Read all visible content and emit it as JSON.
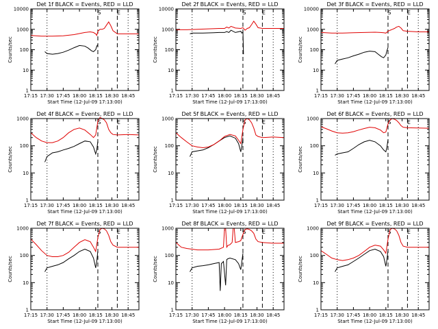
{
  "chart_data": {
    "type": "line",
    "colors": {
      "events": "#000000",
      "lld": "#e00000",
      "axes": "#000000",
      "background": "#ffffff"
    },
    "x_tick_labels": [
      "17:15",
      "17:30",
      "17:45",
      "18:00",
      "18:15",
      "18:30",
      "18:45"
    ],
    "x_ticks_minutes": [
      0,
      15,
      30,
      45,
      60,
      75,
      90
    ],
    "xlim_minutes": [
      0,
      100
    ],
    "xlabel": "Start Time (12-Jul-09 17:13:00)",
    "ylabel": "Counts/sec",
    "yscale": "log",
    "dotted_lines_minutes": [
      15,
      90
    ],
    "dashed_lines_minutes": [
      62,
      80
    ],
    "markers": [
      {
        "text": "S",
        "minute": 62
      },
      {
        "text": "E",
        "minute": 80
      }
    ],
    "panels": [
      {
        "title": "Det 1f BLACK = Events, RED = LLD",
        "y_tick_labels": [
          "1",
          "10",
          "100",
          "1000",
          "10000"
        ],
        "ylim": [
          1,
          10000
        ],
        "series": [
          {
            "color": "#000000",
            "x": [
              13,
              15,
              20,
              25,
              30,
              35,
              40,
              45,
              50,
              53,
              56,
              58,
              60,
              61,
              62
            ],
            "y": [
              80,
              65,
              60,
              65,
              75,
              95,
              125,
              160,
              150,
              120,
              90,
              80,
              100,
              150,
              180
            ]
          },
          {
            "color": "#e00000",
            "x": [
              0,
              10,
              20,
              30,
              40,
              50,
              55,
              58,
              60,
              61,
              62,
              64,
              66,
              68,
              70,
              72,
              74,
              76,
              80,
              85,
              90,
              100
            ],
            "y": [
              500,
              460,
              460,
              480,
              550,
              700,
              750,
              700,
              600,
              500,
              800,
              1000,
              1000,
              1100,
              1600,
              2300,
              1500,
              850,
              600,
              600,
              600,
              600
            ]
          }
        ]
      },
      {
        "title": "Det 2f BLACK = Events, RED = LLD",
        "y_tick_labels": [
          "1",
          "10",
          "100",
          "1000",
          "10000"
        ],
        "ylim": [
          1,
          10000
        ],
        "series": [
          {
            "color": "#000000",
            "x": [
              13,
              15,
              25,
              35,
              40,
              45,
              47,
              49,
              51,
              55,
              60,
              61,
              62,
              62.5
            ],
            "y": [
              600,
              650,
              650,
              680,
              700,
              700,
              780,
              700,
              900,
              700,
              800,
              650,
              750,
              60
            ]
          },
          {
            "color": "#e00000",
            "x": [
              0,
              10,
              20,
              30,
              40,
              45,
              47,
              49,
              51,
              55,
              60,
              62,
              64,
              66,
              68,
              70,
              72,
              74,
              76,
              80,
              90,
              100
            ],
            "y": [
              950,
              950,
              1000,
              1050,
              1100,
              1100,
              1300,
              1150,
              1400,
              1150,
              1100,
              1200,
              900,
              1100,
              1200,
              1700,
              2500,
              1800,
              1200,
              1100,
              1100,
              1100
            ]
          }
        ]
      },
      {
        "title": "Det 3f BLACK = Events, RED = LLD",
        "y_tick_labels": [
          "1",
          "10",
          "100",
          "1000",
          "10000"
        ],
        "ylim": [
          1,
          10000
        ],
        "series": [
          {
            "color": "#000000",
            "x": [
              13,
              15,
              20,
              25,
              30,
              35,
              40,
              45,
              50,
              53,
              56,
              58,
              60,
              61,
              62
            ],
            "y": [
              20,
              30,
              35,
              40,
              50,
              60,
              75,
              85,
              80,
              60,
              45,
              40,
              55,
              90,
              130
            ]
          },
          {
            "color": "#e00000",
            "x": [
              0,
              10,
              20,
              30,
              40,
              50,
              55,
              58,
              60,
              62,
              64,
              66,
              68,
              70,
              72,
              74,
              76,
              80,
              90,
              100
            ],
            "y": [
              700,
              650,
              650,
              680,
              700,
              720,
              700,
              680,
              650,
              800,
              900,
              1000,
              1100,
              1300,
              1400,
              1150,
              850,
              800,
              750,
              750
            ]
          }
        ]
      },
      {
        "title": "Det 4f BLACK = Events, RED = LLD",
        "y_tick_labels": [
          "1",
          "10",
          "100",
          "1000"
        ],
        "ylim": [
          1,
          1000
        ],
        "series": [
          {
            "color": "#000000",
            "x": [
              13,
              15,
              20,
              25,
              30,
              35,
              40,
              45,
              50,
              55,
              58,
              60,
              61,
              62
            ],
            "y": [
              25,
              40,
              55,
              60,
              70,
              80,
              95,
              120,
              150,
              140,
              90,
              50,
              70,
              150
            ]
          },
          {
            "color": "#e00000",
            "x": [
              0,
              5,
              10,
              15,
              20,
              25,
              30,
              35,
              40,
              45,
              50,
              55,
              58,
              60,
              62,
              64,
              66,
              68,
              70,
              72,
              74,
              76,
              80,
              90,
              100
            ],
            "y": [
              300,
              200,
              150,
              130,
              130,
              150,
              200,
              300,
              400,
              450,
              380,
              260,
              200,
              250,
              800,
              1100,
              1000,
              900,
              700,
              400,
              300,
              260,
              250,
              260,
              250
            ]
          }
        ]
      },
      {
        "title": "Det 5f BLACK = Events, RED = LLD",
        "y_tick_labels": [
          "1",
          "10",
          "100",
          "1000"
        ],
        "ylim": [
          1,
          1000
        ],
        "series": [
          {
            "color": "#000000",
            "x": [
              13,
              15,
              20,
              25,
              30,
              35,
              40,
              45,
              50,
              55,
              58,
              60,
              61,
              62
            ],
            "y": [
              40,
              60,
              65,
              70,
              85,
              110,
              150,
              200,
              230,
              190,
              120,
              60,
              100,
              200
            ]
          },
          {
            "color": "#e00000",
            "x": [
              0,
              5,
              10,
              15,
              20,
              25,
              30,
              35,
              40,
              45,
              50,
              55,
              58,
              60,
              62,
              64,
              66,
              68,
              70,
              72,
              74,
              76,
              80,
              90,
              100
            ],
            "y": [
              300,
              200,
              140,
              100,
              90,
              85,
              90,
              110,
              150,
              220,
              260,
              230,
              160,
              120,
              400,
              900,
              1000,
              900,
              700,
              450,
              250,
              220,
              200,
              210,
              200
            ]
          }
        ]
      },
      {
        "title": "Det 6f BLACK = Events, RED = LLD",
        "y_tick_labels": [
          "1",
          "10",
          "100",
          "1000"
        ],
        "ylim": [
          1,
          1000
        ],
        "series": [
          {
            "color": "#000000",
            "x": [
              13,
              15,
              20,
              25,
              30,
              35,
              40,
              45,
              50,
              55,
              58,
              60,
              61,
              62
            ],
            "y": [
              45,
              50,
              55,
              60,
              80,
              110,
              140,
              160,
              140,
              100,
              70,
              60,
              90,
              170
            ]
          },
          {
            "color": "#e00000",
            "x": [
              0,
              5,
              10,
              15,
              20,
              25,
              30,
              35,
              40,
              45,
              50,
              55,
              58,
              60,
              62,
              64,
              66,
              68,
              70,
              72,
              74,
              76,
              80,
              90,
              100
            ],
            "y": [
              500,
              420,
              350,
              300,
              290,
              300,
              330,
              380,
              430,
              480,
              460,
              380,
              300,
              320,
              650,
              900,
              1000,
              950,
              850,
              700,
              550,
              480,
              460,
              450,
              440
            ]
          }
        ]
      },
      {
        "title": "Det 7f BLACK = Events, RED = LLD",
        "y_tick_labels": [
          "1",
          "10",
          "100",
          "1000"
        ],
        "ylim": [
          1,
          1000
        ],
        "series": [
          {
            "color": "#000000",
            "x": [
              13,
              15,
              20,
              25,
              30,
              35,
              40,
              45,
              50,
              55,
              58,
              60,
              61,
              62
            ],
            "y": [
              25,
              35,
              40,
              45,
              55,
              75,
              100,
              140,
              170,
              140,
              80,
              35,
              60,
              150
            ]
          },
          {
            "color": "#e00000",
            "x": [
              0,
              5,
              10,
              15,
              20,
              25,
              30,
              35,
              40,
              45,
              50,
              55,
              58,
              60,
              62,
              64,
              66,
              68,
              70,
              72,
              74,
              76,
              80,
              90,
              100
            ],
            "y": [
              400,
              250,
              150,
              100,
              90,
              90,
              100,
              130,
              200,
              300,
              380,
              320,
              200,
              140,
              450,
              900,
              1000,
              950,
              800,
              550,
              320,
              240,
              200,
              200,
              200
            ]
          }
        ]
      },
      {
        "title": "Det 8f BLACK = Events, RED = LLD",
        "y_tick_labels": [
          "1",
          "10",
          "100",
          "1000"
        ],
        "ylim": [
          1,
          1000
        ],
        "series": [
          {
            "color": "#000000",
            "x": [
              13,
              15,
              20,
              25,
              30,
              35,
              40,
              41,
              42,
              44,
              46,
              47,
              48,
              50,
              55,
              58,
              60,
              61,
              62
            ],
            "y": [
              25,
              35,
              40,
              42,
              45,
              50,
              55,
              5,
              50,
              60,
              8,
              70,
              75,
              80,
              70,
              50,
              30,
              60,
              120
            ]
          },
          {
            "color": "#e00000",
            "x": [
              0,
              5,
              10,
              20,
              30,
              40,
              44,
              45,
              46,
              47,
              48,
              50,
              52,
              53,
              54,
              55,
              58,
              60,
              62,
              64,
              66,
              68,
              70,
              72,
              74,
              76,
              80,
              90,
              100
            ],
            "y": [
              300,
              200,
              180,
              160,
              160,
              170,
              200,
              1000,
              1000,
              200,
              230,
              250,
              300,
              1000,
              1000,
              300,
              320,
              350,
              600,
              900,
              950,
              900,
              800,
              650,
              400,
              320,
              300,
              280,
              280
            ]
          }
        ]
      },
      {
        "title": "Det 9f BLACK = Events, RED = LLD",
        "y_tick_labels": [
          "1",
          "10",
          "100",
          "1000"
        ],
        "ylim": [
          1,
          1000
        ],
        "series": [
          {
            "color": "#000000",
            "x": [
              13,
              15,
              20,
              25,
              30,
              35,
              40,
              45,
              50,
              55,
              58,
              60,
              61,
              62
            ],
            "y": [
              25,
              35,
              40,
              45,
              60,
              80,
              110,
              150,
              170,
              140,
              90,
              40,
              70,
              160
            ]
          },
          {
            "color": "#e00000",
            "x": [
              0,
              5,
              10,
              15,
              20,
              25,
              30,
              35,
              40,
              45,
              50,
              55,
              58,
              60,
              62,
              64,
              66,
              68,
              70,
              72,
              74,
              76,
              80,
              90,
              100
            ],
            "y": [
              150,
              110,
              80,
              70,
              65,
              70,
              80,
              100,
              140,
              200,
              240,
              220,
              160,
              120,
              400,
              900,
              1000,
              950,
              800,
              550,
              300,
              220,
              200,
              200,
              200
            ]
          }
        ]
      }
    ]
  }
}
